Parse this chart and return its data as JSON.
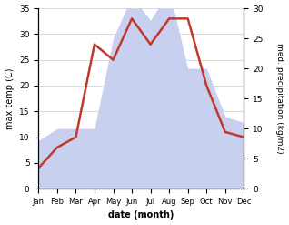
{
  "months": [
    "Jan",
    "Feb",
    "Mar",
    "Apr",
    "May",
    "Jun",
    "Jul",
    "Aug",
    "Sep",
    "Oct",
    "Nov",
    "Dec"
  ],
  "temperature": [
    4,
    8,
    10,
    28,
    25,
    33,
    28,
    33,
    33,
    20,
    11,
    10
  ],
  "precipitation": [
    8,
    10,
    10,
    10,
    25,
    32,
    28,
    33,
    20,
    20,
    12,
    11
  ],
  "temp_color": "#c0392b",
  "precip_fill_color": "#c8d0f0",
  "precip_edge_color": "#c8d0f0",
  "ylabel_left": "max temp (C)",
  "ylabel_right": "med. precipitation (kg/m2)",
  "xlabel": "date (month)",
  "ylim_left": [
    0,
    35
  ],
  "ylim_right": [
    0,
    30
  ],
  "yticks_left": [
    0,
    5,
    10,
    15,
    20,
    25,
    30,
    35
  ],
  "yticks_right": [
    0,
    5,
    10,
    15,
    20,
    25,
    30
  ],
  "temp_linewidth": 1.8,
  "figsize": [
    3.18,
    2.47
  ],
  "dpi": 100
}
